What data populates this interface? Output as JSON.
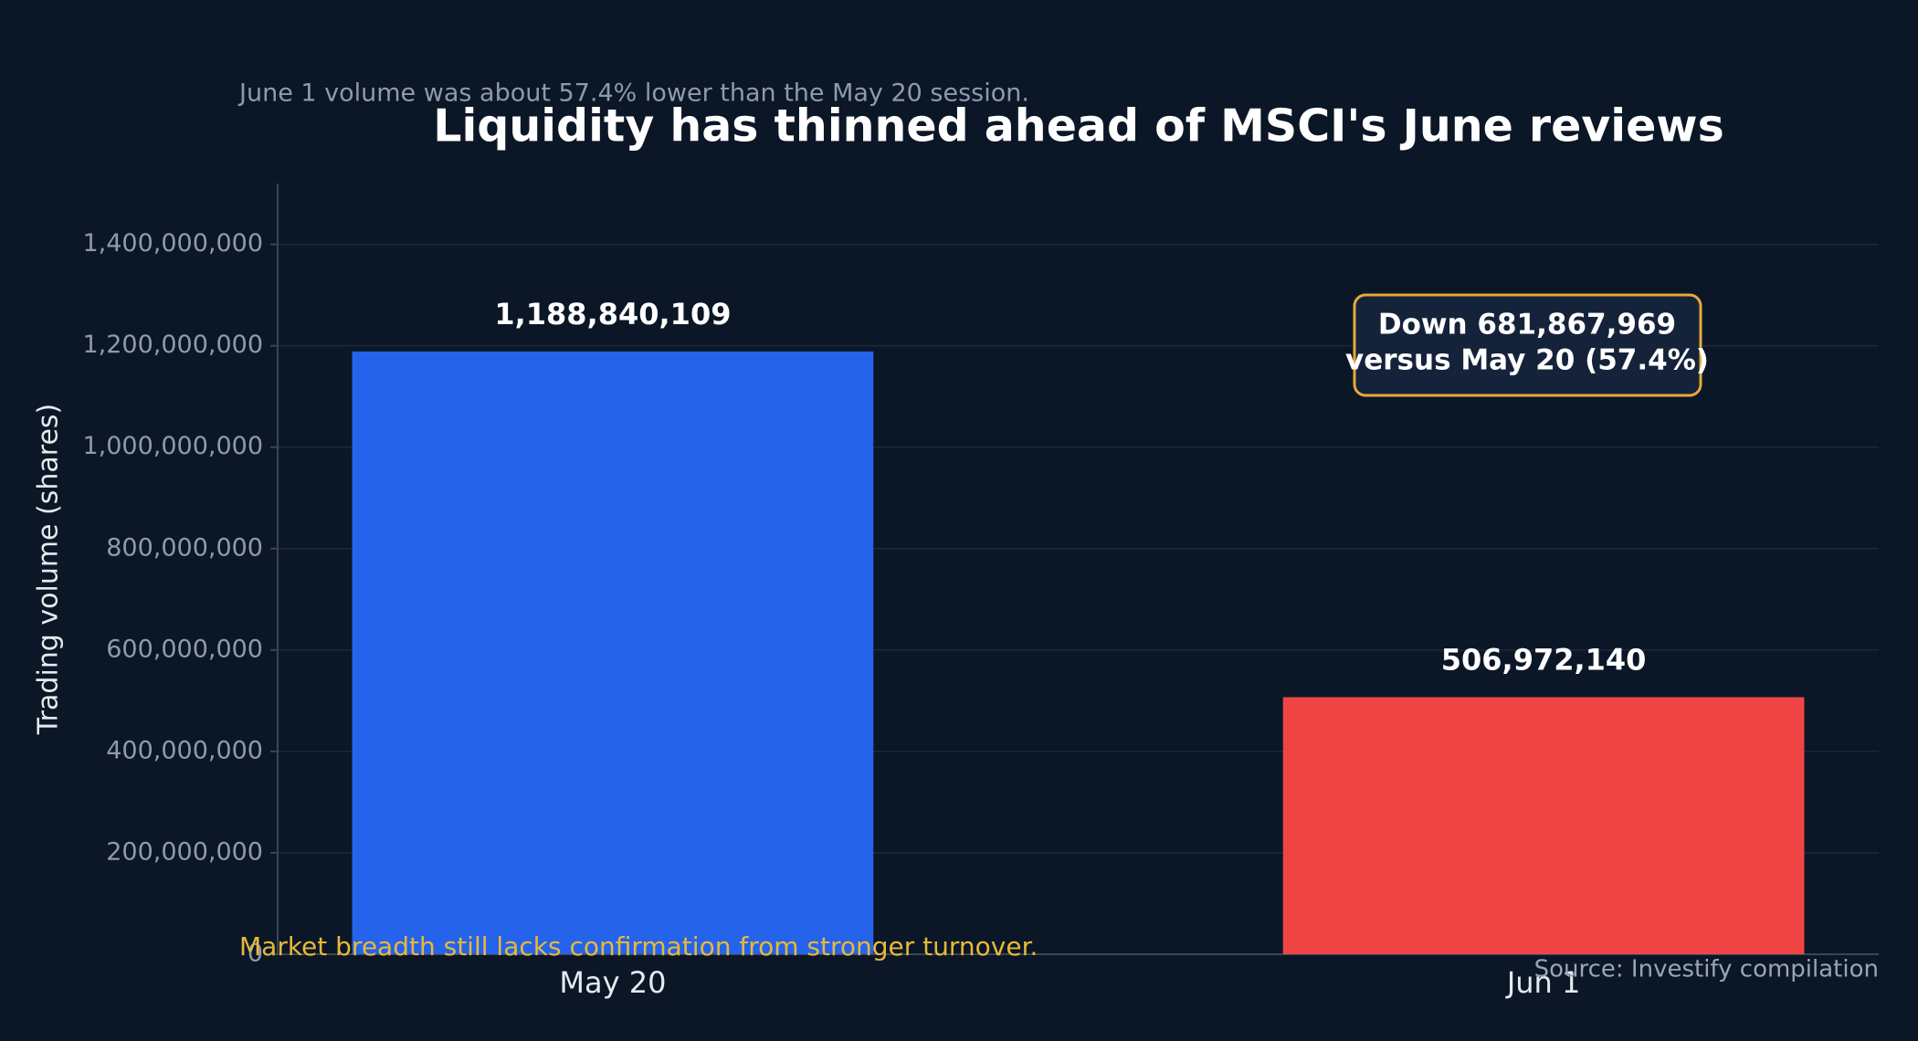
{
  "chart_data": {
    "type": "bar",
    "title": "Liquidity has thinned ahead of MSCI's June reviews",
    "subtitle": "June 1 volume was about 57.4% lower than the May 20 session.",
    "y_label": "Trading volume (shares)",
    "categories": [
      "May 20",
      "Jun 1"
    ],
    "values": [
      1188840109,
      506972140
    ],
    "value_labels": [
      "1,188,840,109",
      "506,972,140"
    ],
    "colors": [
      "#2563eb",
      "#ef4444"
    ],
    "ylim": [
      0,
      1520000000
    ],
    "yticks": [
      0,
      {
        "value": 200000000,
        "label": "200,000,000"
      },
      {
        "value": 400000000,
        "label": "400,000,000"
      },
      {
        "value": 600000000,
        "label": "600,000,000"
      },
      {
        "value": 800000000,
        "label": "800,000,000"
      },
      {
        "value": 1000000000,
        "label": "1,000,000,000"
      },
      {
        "value": 1200000000,
        "label": "1,200,000,000"
      },
      {
        "value": 1400000000,
        "label": "1,400,000,000"
      }
    ],
    "grid": true,
    "annotation": [
      "Down 681,867,969",
      "versus May 20 (57.4%)"
    ],
    "note": "Market breadth still lacks confirmation from stronger turnover.",
    "source": "Source: Investify compilation"
  }
}
